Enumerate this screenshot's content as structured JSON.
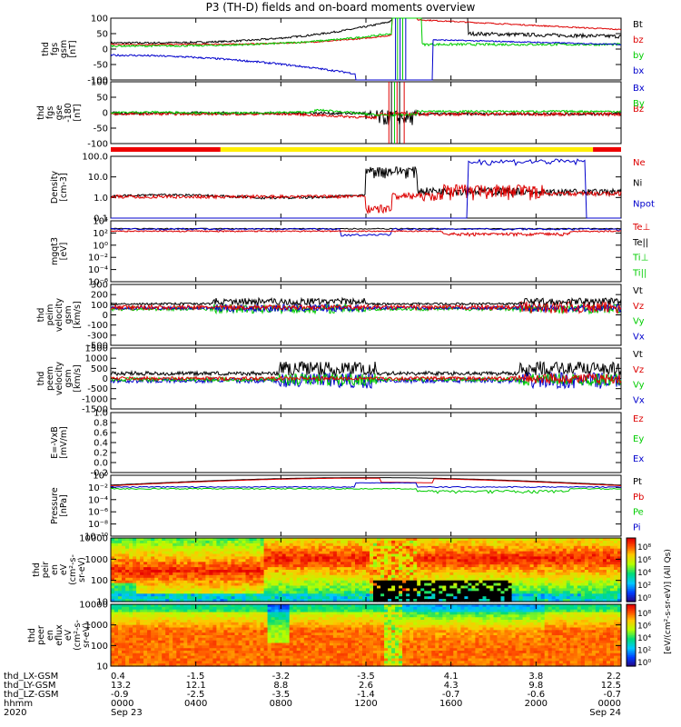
{
  "title": "P3 (TH-D) fields and on-board moments overview",
  "colors": {
    "black": "#000000",
    "red": "#dd0000",
    "green": "#00cc00",
    "blue": "#0000cc",
    "yellow": "#ffee00",
    "barred": "#ee0000"
  },
  "chart_data": [
    {
      "type": "line",
      "name": "fgs_gsm",
      "ylabel": [
        "thd",
        "fgs",
        "gsm",
        "[nT]"
      ],
      "ylim": [
        -100,
        100
      ],
      "yticks": [
        "100",
        "50",
        "0",
        "-50",
        "-100"
      ],
      "legend": [
        {
          "name": "Bt",
          "color": "black"
        },
        {
          "name": "bz",
          "color": "red"
        },
        {
          "name": "by",
          "color": "green"
        },
        {
          "name": "bx",
          "color": "blue"
        }
      ]
    },
    {
      "type": "line",
      "name": "fgs_gse",
      "ylabel": [
        "thd",
        "fgs",
        "gse",
        "-180",
        "[nT]"
      ],
      "ylim": [
        -120,
        120
      ],
      "yticks": [
        "100",
        "50",
        "0",
        "-50",
        "-100"
      ],
      "legend": [
        {
          "name": "Bx",
          "color": "blue"
        },
        {
          "name": "By",
          "color": "green"
        },
        {
          "name": "Bz",
          "color": "red"
        }
      ]
    },
    {
      "type": "line",
      "name": "density",
      "scale": "log",
      "ylabel": [
        "Density",
        "[cm-3]"
      ],
      "yticks": [
        "100.0",
        "10.0",
        "1.0",
        "0.1"
      ],
      "legend": [
        {
          "name": "Ne",
          "color": "red"
        },
        {
          "name": "Ni",
          "color": "black"
        },
        {
          "name": "Npot",
          "color": "blue"
        }
      ]
    },
    {
      "type": "line",
      "name": "temperature",
      "scale": "log",
      "ylabel": [
        "mgqt3",
        "[eV]"
      ],
      "yticks": [
        "10⁴",
        "10²",
        "10⁰",
        "10⁻²",
        "10⁻⁴",
        "10⁻⁶"
      ],
      "legend": [
        {
          "name": "Te⊥",
          "color": "red"
        },
        {
          "name": "Te||",
          "color": "black"
        },
        {
          "name": "Ti⊥",
          "color": "green"
        },
        {
          "name": "Ti||",
          "color": "green"
        }
      ]
    },
    {
      "type": "line",
      "name": "peim_velocity",
      "ylabel": [
        "thd",
        "peim",
        "velocity",
        "gsm",
        "[km/s]"
      ],
      "ylim": [
        -500,
        300
      ],
      "yticks": [
        "300",
        "200",
        "100",
        "0",
        "-100",
        "-300",
        "-500"
      ],
      "legend": [
        {
          "name": "Vt",
          "color": "black"
        },
        {
          "name": "Vz",
          "color": "red"
        },
        {
          "name": "Vy",
          "color": "green"
        },
        {
          "name": "Vx",
          "color": "blue"
        }
      ]
    },
    {
      "type": "line",
      "name": "peem_velocity",
      "ylabel": [
        "thd",
        "peem",
        "velocity",
        "gsm",
        "[km/s]"
      ],
      "ylim": [
        -1500,
        1500
      ],
      "yticks": [
        "1500",
        "1000",
        "500",
        "0",
        "-500",
        "-1000",
        "-1500"
      ],
      "legend": [
        {
          "name": "Vt",
          "color": "black"
        },
        {
          "name": "Vz",
          "color": "red"
        },
        {
          "name": "Vy",
          "color": "green"
        },
        {
          "name": "Vx",
          "color": "blue"
        }
      ]
    },
    {
      "type": "line",
      "name": "efield",
      "ylabel": [
        "E=-VxB",
        "[mV/m]"
      ],
      "ylim": [
        -0.2,
        1.0
      ],
      "yticks": [
        "1.0",
        "0.8",
        "0.6",
        "0.4",
        "0.2",
        "0.0",
        "-0.2"
      ],
      "legend": [
        {
          "name": "Ez",
          "color": "red"
        },
        {
          "name": "Ey",
          "color": "green"
        },
        {
          "name": "Ex",
          "color": "blue"
        }
      ]
    },
    {
      "type": "line",
      "name": "pressure",
      "scale": "log",
      "ylabel": [
        "Pressure",
        "[nPa]"
      ],
      "yticks": [
        "10⁰",
        "10⁻²",
        "10⁻⁴",
        "10⁻⁶",
        "10⁻⁸",
        "10⁻¹⁰"
      ],
      "legend": [
        {
          "name": "Pt",
          "color": "black"
        },
        {
          "name": "Pb",
          "color": "red"
        },
        {
          "name": "Pe",
          "color": "green"
        },
        {
          "name": "Pi",
          "color": "blue"
        }
      ]
    },
    {
      "type": "heatmap",
      "name": "peir_eflux",
      "ylabel": [
        "thd",
        "peir",
        "en",
        "eV",
        "(cm²-s-",
        "sr-eV)"
      ],
      "yticks": [
        "10000",
        "1000",
        "100",
        "10"
      ],
      "colorbar": [
        "10⁸",
        "10⁶",
        "10⁴",
        "10²",
        "10⁰"
      ]
    },
    {
      "type": "heatmap",
      "name": "peer_eflux",
      "ylabel": [
        "thd",
        "peer",
        "en",
        "eflux",
        "eV",
        "(cm²-s-",
        "sr-eV)"
      ],
      "yticks": [
        "10000",
        "1000",
        "100",
        "10"
      ],
      "colorbar": [
        "10⁸",
        "10⁶",
        "10⁴",
        "10²",
        "10⁰"
      ]
    }
  ],
  "colorbar_label": "[eV/(cm²-s-sr-eV)] (All Qs)",
  "x_axis": {
    "row_labels": [
      "thd_LX-GSM",
      "thd_LY-GSM",
      "thd_LZ-GSM",
      "hhmm",
      "2020"
    ],
    "columns": [
      [
        "0.4",
        "13.2",
        "-0.9",
        "0000",
        "Sep 23"
      ],
      [
        "-1.5",
        "12.1",
        "-2.5",
        "0400",
        ""
      ],
      [
        "-3.2",
        "8.8",
        "-3.5",
        "0800",
        ""
      ],
      [
        "-3.5",
        "2.6",
        "-1.4",
        "1200",
        ""
      ],
      [
        "4.1",
        "4.3",
        "-0.7",
        "1600",
        ""
      ],
      [
        "3.8",
        "9.8",
        "-0.6",
        "2000",
        ""
      ],
      [
        "2.2",
        "12.5",
        "-0.7",
        "0000",
        "Sep 24"
      ]
    ]
  }
}
